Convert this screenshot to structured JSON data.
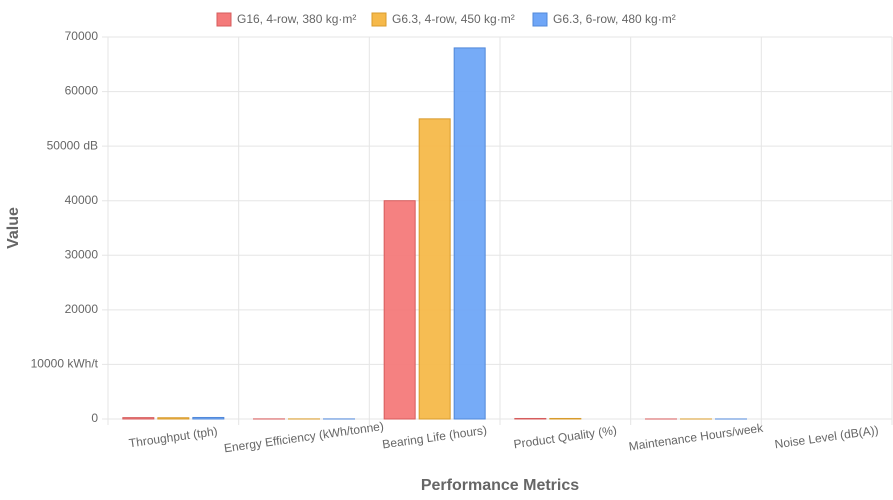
{
  "chart_data": {
    "type": "bar",
    "x_label": "Performance Metrics",
    "y_label": "Value",
    "categories": [
      "Throughput (tph)",
      "Energy Efficiency (kWh/tonne)",
      "Bearing Life (hours)",
      "Product Quality (%)",
      "Maintenance Hours/week",
      "Noise Level (dB(A))"
    ],
    "series": [
      {
        "name": "G16, 4-row, 380 kg·m²",
        "color": "#f47a7a",
        "values": [
          250,
          14,
          40000,
          96,
          4,
          null
        ]
      },
      {
        "name": "G6.3, 4-row, 450 kg·m²",
        "color": "#f6b94a",
        "values": [
          230,
          13,
          55000,
          98,
          3,
          null
        ]
      },
      {
        "name": "G6.3, 6-row, 480 kg·m²",
        "color": "#6fa6f7",
        "values": [
          280,
          11,
          68000,
          null,
          2,
          null
        ]
      }
    ],
    "ylim": [
      0,
      70000
    ],
    "yticks": [
      0,
      {
        "value": 10000,
        "label": "10000 kWh/t"
      },
      20000,
      30000,
      40000,
      {
        "value": 50000,
        "label": "50000 dB"
      },
      60000,
      70000
    ],
    "grid": true,
    "legend": "top"
  }
}
